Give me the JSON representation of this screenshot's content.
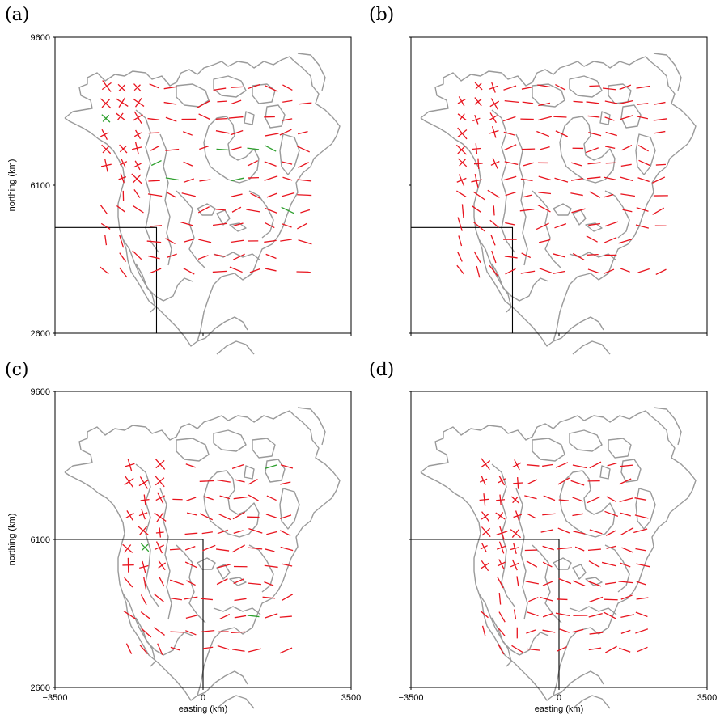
{
  "figure": {
    "panels": [
      {
        "id": "a",
        "letter": "(a)",
        "show_y": true,
        "show_x": false,
        "y_ticks": [
          "9600",
          "6100",
          "2600"
        ],
        "x_ticks": [],
        "xlabel": "",
        "ylabel": "northing (km)",
        "inset_corner": [
          -1100,
          5100
        ],
        "has_green": true
      },
      {
        "id": "b",
        "letter": "(b)",
        "show_y": false,
        "show_x": false,
        "y_ticks": [],
        "x_ticks": [],
        "xlabel": "",
        "ylabel": "",
        "inset_corner": [
          -1100,
          5100
        ],
        "has_green": false
      },
      {
        "id": "c",
        "letter": "(c)",
        "show_y": true,
        "show_x": true,
        "y_ticks": [
          "9600",
          "6100",
          "2600"
        ],
        "x_ticks": [
          "−3500",
          "0",
          "3500"
        ],
        "xlabel": "easting (km)",
        "ylabel": "northing (km)",
        "inset_corner": [
          0,
          6100
        ],
        "has_green": true
      },
      {
        "id": "d",
        "letter": "(d)",
        "show_y": false,
        "show_x": true,
        "y_ticks": [],
        "x_ticks": [
          "−3500",
          "0",
          "3500"
        ],
        "xlabel": "easting (km)",
        "ylabel": "",
        "inset_corner": [
          0,
          6100
        ],
        "has_green": false
      }
    ],
    "axis_range": {
      "x": [
        -3500,
        3500
      ],
      "y": [
        2600,
        9600
      ]
    },
    "colors": {
      "vectors": "#e8141e",
      "vectors_alt": "#2ea02e",
      "coast": "#9a9a9a",
      "frame": "#000000"
    }
  }
}
